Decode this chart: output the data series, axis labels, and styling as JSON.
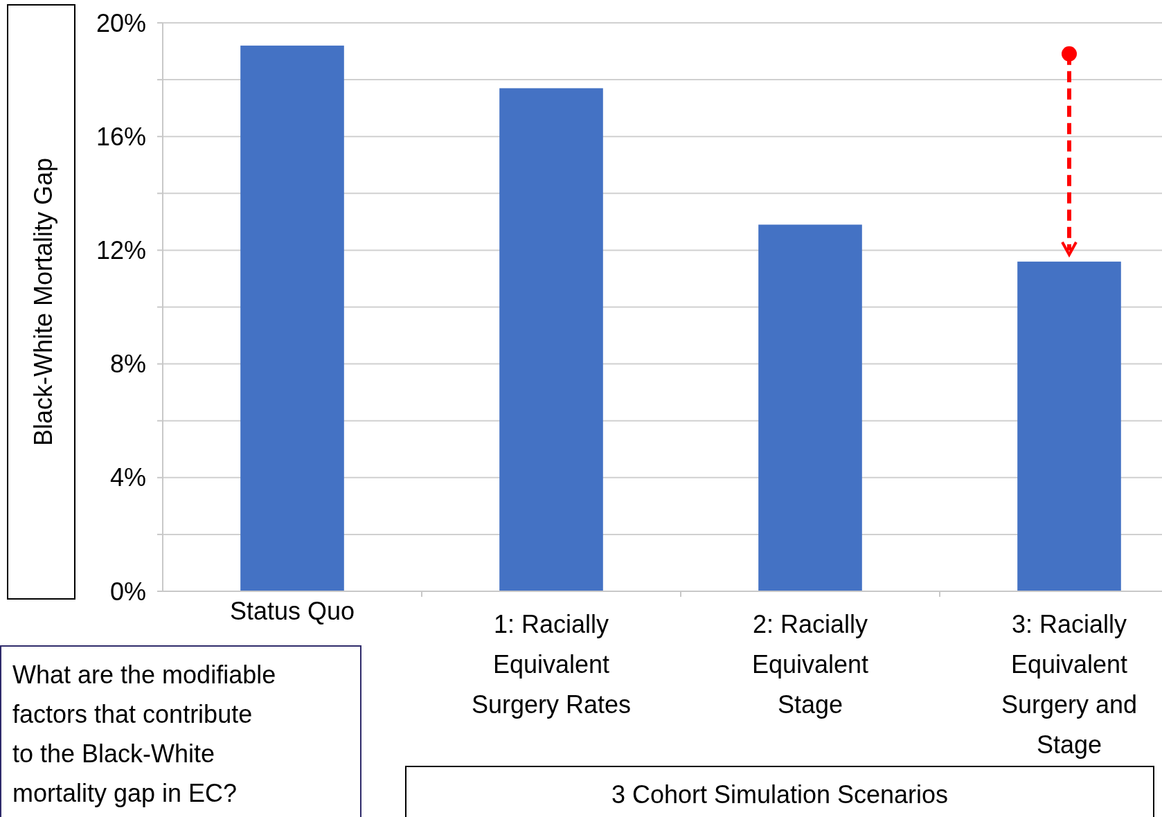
{
  "chart_data": {
    "type": "bar",
    "ylabel": "Black-White Mortality Gap",
    "categories": [
      "Status Quo",
      "1: Racially Equivalent Surgery Rates",
      "2: Racially Equivalent Stage",
      "3: Racially Equivalent Surgery and Stage"
    ],
    "values": [
      19.2,
      17.7,
      12.9,
      11.6
    ],
    "color": "#4472c4",
    "ylim": [
      0,
      20
    ],
    "yticks": [
      {
        "value": 0,
        "label": "0%"
      },
      {
        "value": 2,
        "label": null
      },
      {
        "value": 4,
        "label": "4%"
      },
      {
        "value": 6,
        "label": null
      },
      {
        "value": 8,
        "label": "8%"
      },
      {
        "value": 10,
        "label": null
      },
      {
        "value": 12,
        "label": "12%"
      },
      {
        "value": 14,
        "label": null
      },
      {
        "value": 16,
        "label": "16%"
      },
      {
        "value": 18,
        "label": null
      },
      {
        "value": 20,
        "label": "20%"
      }
    ],
    "grid": "y",
    "annotations": [
      "What are the modifiable factors that contribute to the Black-White mortality gap in EC?",
      "3 Cohort Simulation Scenarios"
    ]
  }
}
